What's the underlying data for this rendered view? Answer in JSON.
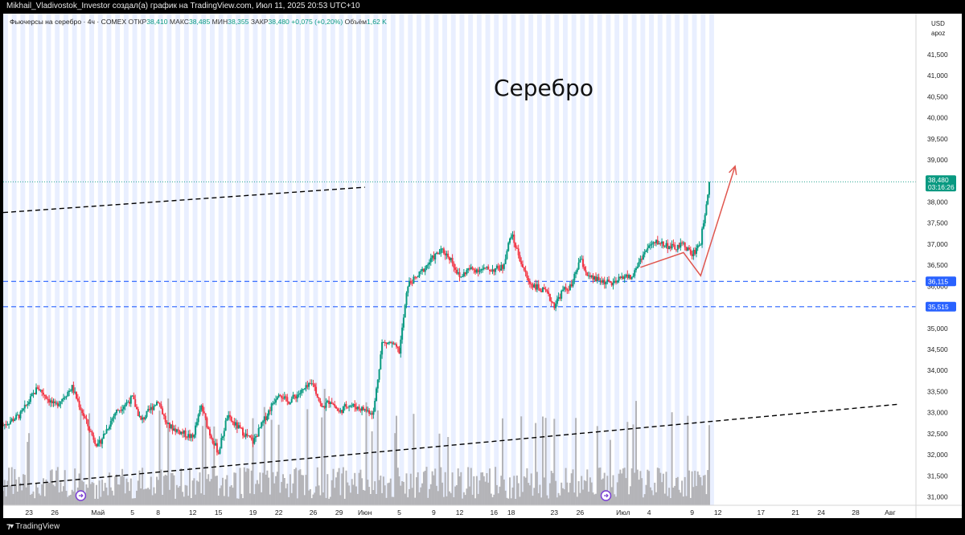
{
  "header": {
    "author_text": "Mikhail_Vladivostok_Investor создал(а) график на TradingView.com, Июл 11, 2025 20:53 UTC+10"
  },
  "legend": {
    "instrument": "Фьючерсы на серебро · 4ч · COMEX",
    "open_label": "ОТКР",
    "open_value": "38,410",
    "high_label": "МАКС",
    "high_value": "38,485",
    "low_label": "МИН",
    "low_value": "38,355",
    "close_label": "ЗАКР",
    "close_value": "38,480",
    "change_value": "+0,075 (+0,20%)",
    "volume_label": "Объём",
    "volume_value": "1,62 K"
  },
  "price_axis": {
    "currency": "USD",
    "unit": "apoz"
  },
  "footer": {
    "brand": "TradingView"
  },
  "colors": {
    "up": "#089981",
    "down": "#f23645",
    "session_band": "#e9efff",
    "level_line": "#2962ff",
    "trend_line": "#000000",
    "arrow": "#e0574f"
  },
  "chart_data": {
    "type": "candlestick",
    "title": "Серебро",
    "y_range": [
      30800,
      41900
    ],
    "y_ticks": [
      "31,000",
      "31,500",
      "32,000",
      "32,500",
      "33,000",
      "33,500",
      "34,000",
      "34,500",
      "35,000",
      "35,500",
      "36,000",
      "36,500",
      "37,000",
      "37,500",
      "38,000",
      "38,500",
      "39,000",
      "39,500",
      "40,000",
      "40,500",
      "41,000",
      "41,500"
    ],
    "x_ticks": [
      {
        "label": "23",
        "date": "2025-04-23"
      },
      {
        "label": "26",
        "date": "2025-04-26"
      },
      {
        "label": "Май",
        "date": "2025-05-01"
      },
      {
        "label": "5",
        "date": "2025-05-05"
      },
      {
        "label": "8",
        "date": "2025-05-08"
      },
      {
        "label": "12",
        "date": "2025-05-12"
      },
      {
        "label": "15",
        "date": "2025-05-15"
      },
      {
        "label": "19",
        "date": "2025-05-19"
      },
      {
        "label": "22",
        "date": "2025-05-22"
      },
      {
        "label": "26",
        "date": "2025-05-26"
      },
      {
        "label": "29",
        "date": "2025-05-29"
      },
      {
        "label": "Июн",
        "date": "2025-06-01"
      },
      {
        "label": "5",
        "date": "2025-06-05"
      },
      {
        "label": "9",
        "date": "2025-06-09"
      },
      {
        "label": "12",
        "date": "2025-06-12"
      },
      {
        "label": "16",
        "date": "2025-06-16"
      },
      {
        "label": "18",
        "date": "2025-06-18"
      },
      {
        "label": "23",
        "date": "2025-06-23"
      },
      {
        "label": "26",
        "date": "2025-06-26"
      },
      {
        "label": "Июл",
        "date": "2025-07-01"
      },
      {
        "label": "4",
        "date": "2025-07-04"
      },
      {
        "label": "9",
        "date": "2025-07-09"
      },
      {
        "label": "12",
        "date": "2025-07-12"
      },
      {
        "label": "17",
        "date": "2025-07-17"
      },
      {
        "label": "21",
        "date": "2025-07-21"
      },
      {
        "label": "24",
        "date": "2025-07-24"
      },
      {
        "label": "28",
        "date": "2025-07-28"
      },
      {
        "label": "Авг",
        "date": "2025-08-01"
      }
    ],
    "last_price": {
      "value": 38480,
      "label": "38,480",
      "countdown": "03:16:26"
    },
    "horizontal_levels": [
      {
        "value": 36115,
        "label": "36,115"
      },
      {
        "value": 35515,
        "label": "35,515"
      }
    ],
    "trend_lines": [
      {
        "from": {
          "date": "2025-04-20",
          "price": 37750
        },
        "to": {
          "date": "2025-06-01",
          "price": 38350
        }
      },
      {
        "from": {
          "date": "2025-04-20",
          "price": 31250
        },
        "to": {
          "date": "2025-08-02",
          "price": 33200
        }
      }
    ],
    "drawn_path": [
      {
        "date": "2025-07-03",
        "price": 36450
      },
      {
        "date": "2025-07-08",
        "price": 36800
      },
      {
        "date": "2025-07-10",
        "price": 36250
      },
      {
        "date": "2025-07-14",
        "price": 38850
      }
    ],
    "path_points": [
      [
        "2025-04-20",
        32700
      ],
      [
        "2025-04-22",
        32950
      ],
      [
        "2025-04-24",
        33600
      ],
      [
        "2025-04-26",
        33150
      ],
      [
        "2025-04-28",
        33600
      ],
      [
        "2025-04-30",
        32600
      ],
      [
        "2025-05-01",
        32200
      ],
      [
        "2025-05-03",
        33000
      ],
      [
        "2025-05-05",
        33350
      ],
      [
        "2025-05-06",
        32800
      ],
      [
        "2025-05-08",
        33300
      ],
      [
        "2025-05-09",
        32700
      ],
      [
        "2025-05-12",
        32400
      ],
      [
        "2025-05-13",
        33150
      ],
      [
        "2025-05-14",
        32500
      ],
      [
        "2025-05-15",
        32050
      ],
      [
        "2025-05-16",
        32900
      ],
      [
        "2025-05-19",
        32300
      ],
      [
        "2025-05-20",
        32700
      ],
      [
        "2025-05-22",
        33500
      ],
      [
        "2025-05-23",
        33250
      ],
      [
        "2025-05-26",
        33700
      ],
      [
        "2025-05-27",
        33100
      ],
      [
        "2025-05-28",
        33300
      ],
      [
        "2025-05-29",
        33000
      ],
      [
        "2025-05-30",
        33200
      ],
      [
        "2025-06-02",
        33000
      ],
      [
        "2025-06-03",
        34650
      ],
      [
        "2025-06-04",
        34650
      ],
      [
        "2025-06-05",
        34450
      ],
      [
        "2025-06-06",
        36050
      ],
      [
        "2025-06-07",
        36200
      ],
      [
        "2025-06-09",
        36700
      ],
      [
        "2025-06-10",
        36850
      ],
      [
        "2025-06-11",
        36650
      ],
      [
        "2025-06-12",
        36200
      ],
      [
        "2025-06-13",
        36400
      ],
      [
        "2025-06-16",
        36400
      ],
      [
        "2025-06-17",
        36450
      ],
      [
        "2025-06-18",
        37250
      ],
      [
        "2025-06-19",
        36650
      ],
      [
        "2025-06-20",
        36100
      ],
      [
        "2025-06-22",
        35850
      ],
      [
        "2025-06-23",
        35550
      ],
      [
        "2025-06-24",
        35900
      ],
      [
        "2025-06-25",
        36000
      ],
      [
        "2025-06-26",
        36650
      ],
      [
        "2025-06-27",
        36200
      ],
      [
        "2025-06-30",
        36050
      ],
      [
        "2025-07-01",
        36250
      ],
      [
        "2025-07-02",
        36200
      ],
      [
        "2025-07-03",
        36650
      ],
      [
        "2025-07-04",
        36950
      ],
      [
        "2025-07-05",
        37050
      ],
      [
        "2025-07-07",
        36900
      ],
      [
        "2025-07-08",
        37000
      ],
      [
        "2025-07-09",
        36750
      ],
      [
        "2025-07-10",
        37050
      ],
      [
        "2025-07-11",
        38480
      ]
    ]
  }
}
